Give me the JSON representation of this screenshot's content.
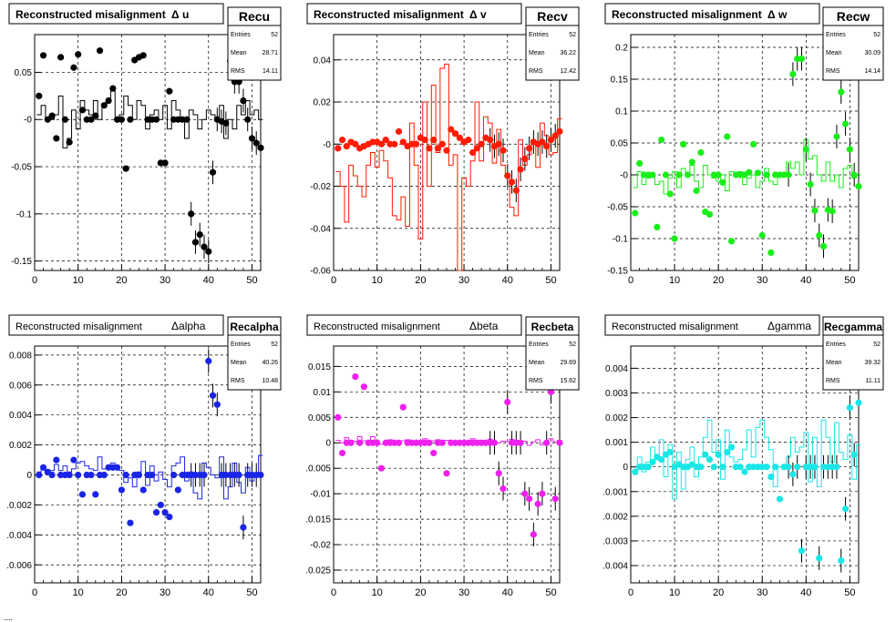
{
  "chart_data": [
    {
      "type": "scatter",
      "title": "Reconstructed misalignment",
      "quantity": "Δ u",
      "stats_name": "Recu",
      "stats": [
        [
          "Entries",
          "52"
        ],
        [
          "Mean",
          "28.71"
        ],
        [
          "RMS",
          "14.11"
        ]
      ],
      "color": "#000000",
      "xlim": [
        0,
        52
      ],
      "ylim": [
        -0.16,
        0.09
      ],
      "xticks": [
        0,
        10,
        20,
        30,
        40,
        50
      ],
      "yticks": [
        -0.15,
        -0.1,
        -0.05,
        0,
        0.05
      ],
      "ytick_labels": [
        "-0.15",
        "-0.1",
        "-0.05",
        "-0",
        "0.05"
      ],
      "x": [
        1,
        2,
        3,
        4,
        5,
        6,
        7,
        8,
        9,
        10,
        11,
        12,
        13,
        14,
        15,
        16,
        17,
        18,
        19,
        20,
        21,
        22,
        23,
        24,
        25,
        26,
        27,
        28,
        29,
        30,
        31,
        32,
        33,
        34,
        35,
        36,
        37,
        38,
        39,
        40,
        41,
        42,
        43,
        44,
        45,
        46,
        47,
        48,
        49,
        50,
        51,
        52
      ],
      "values": [
        0.025,
        0.068,
        0.0,
        0.004,
        -0.02,
        0.066,
        0.0,
        -0.024,
        0.055,
        0.069,
        0.01,
        0.0,
        0.0,
        0.004,
        0.073,
        0.015,
        0.02,
        0.033,
        0.0,
        0.0,
        -0.052,
        0.0,
        0.063,
        0.066,
        0.068,
        0.0,
        0.0,
        0.0,
        -0.046,
        -0.046,
        0.03,
        0.0,
        0.0,
        0.0,
        0.0,
        -0.1,
        -0.13,
        -0.122,
        -0.135,
        -0.14,
        -0.056,
        0.0,
        -0.002,
        -0.004,
        0.062,
        0.04,
        0.04,
        0.02,
        0.0,
        -0.02,
        -0.025,
        -0.03
      ],
      "hist": [
        0.005,
        0.015,
        0.0,
        0.0,
        0.005,
        0.025,
        -0.03,
        -0.02,
        0.01,
        -0.01,
        0.02,
        0.01,
        0.005,
        0.02,
        0.0,
        0.015,
        0.02,
        0.03,
        0.0,
        0.005,
        0.025,
        0.015,
        0.0,
        0.02,
        0.015,
        -0.01,
        0.005,
        0.01,
        0.0,
        0.015,
        -0.01,
        0.02,
        0.01,
        0.0,
        -0.02,
        0.01,
        0.005,
        -0.01,
        0.0,
        0.01,
        0.005,
        0.0,
        0.015,
        -0.02,
        0.0,
        -0.01,
        0.015,
        0.005,
        0.02,
        0.005,
        0.01,
        0.0
      ]
    },
    {
      "type": "scatter",
      "title": "Reconstructed misalignment",
      "quantity": "Δ v",
      "stats_name": "Recv",
      "stats": [
        [
          "Entries",
          "52"
        ],
        [
          "Mean",
          "36.22"
        ],
        [
          "RMS",
          "12.42"
        ]
      ],
      "color": "#ff1a00",
      "xlim": [
        0,
        52
      ],
      "ylim": [
        -0.06,
        0.052
      ],
      "xticks": [
        0,
        10,
        20,
        30,
        40,
        50
      ],
      "yticks": [
        -0.06,
        -0.04,
        -0.02,
        0,
        0.02,
        0.04
      ],
      "ytick_labels": [
        "-0.06",
        "-0.04",
        "-0.02",
        "-0",
        "0.02",
        "0.04"
      ],
      "x": [
        1,
        2,
        3,
        4,
        5,
        6,
        7,
        8,
        9,
        10,
        11,
        12,
        13,
        14,
        15,
        16,
        17,
        18,
        19,
        20,
        21,
        22,
        23,
        24,
        25,
        26,
        27,
        28,
        29,
        30,
        31,
        32,
        33,
        34,
        35,
        36,
        37,
        38,
        39,
        40,
        41,
        42,
        43,
        44,
        45,
        46,
        47,
        48,
        49,
        50,
        51,
        52
      ],
      "values": [
        -0.002,
        0.002,
        -0.001,
        0.001,
        0.0,
        -0.002,
        -0.001,
        0.0,
        0.001,
        0.001,
        0.0,
        0.002,
        0.0,
        0.0,
        0.006,
        0.001,
        -0.001,
        0.0,
        0.0,
        0.003,
        0.002,
        -0.002,
        0.002,
        -0.002,
        0.0,
        -0.003,
        0.007,
        0.005,
        0.003,
        0.001,
        0.002,
        -0.004,
        -0.002,
        0.0,
        0.003,
        0.002,
        -0.001,
        0.0,
        -0.003,
        -0.015,
        -0.018,
        -0.022,
        -0.012,
        -0.007,
        -0.002,
        0.001,
        0.0,
        0.001,
        -0.001,
        0.002,
        0.004,
        0.006
      ],
      "hist": [
        -0.013,
        -0.02,
        -0.037,
        -0.01,
        -0.015,
        -0.02,
        -0.025,
        -0.01,
        -0.004,
        -0.011,
        -0.003,
        -0.008,
        -0.016,
        -0.034,
        -0.036,
        -0.025,
        -0.039,
        0.01,
        -0.01,
        -0.045,
        0.02,
        -0.02,
        0.028,
        -0.004,
        0.036,
        0.038,
        -0.01,
        -0.005,
        -0.06,
        -0.016,
        -0.02,
        -0.008,
        0.02,
        -0.008,
        0.013,
        0.01,
        -0.009,
        0.007,
        -0.01,
        -0.014,
        -0.03,
        -0.034,
        0.002,
        -0.01,
        -0.005,
        0.002,
        -0.011,
        0.01,
        0.004,
        -0.005,
        -0.004,
        0.012
      ]
    },
    {
      "type": "scatter",
      "title": "Reconstructed misalignment",
      "quantity": "Δ w",
      "stats_name": "Recw",
      "stats": [
        [
          "Entries",
          "52"
        ],
        [
          "Mean",
          "30.09"
        ],
        [
          "RMS",
          "14.14"
        ]
      ],
      "color": "#1aee1a",
      "xlim": [
        0,
        52
      ],
      "ylim": [
        -0.15,
        0.22
      ],
      "xticks": [
        0,
        10,
        20,
        30,
        40,
        50
      ],
      "yticks": [
        -0.15,
        -0.1,
        -0.05,
        0,
        0.05,
        0.1,
        0.15,
        0.2
      ],
      "ytick_labels": [
        "-0.15",
        "-0.1",
        "-0.05",
        "-0",
        "0.05",
        "0.1",
        "0.15",
        "0.2"
      ],
      "x": [
        1,
        2,
        3,
        4,
        5,
        6,
        7,
        8,
        9,
        10,
        11,
        12,
        13,
        14,
        15,
        16,
        17,
        18,
        19,
        20,
        21,
        22,
        23,
        24,
        25,
        26,
        27,
        28,
        29,
        30,
        31,
        32,
        33,
        34,
        35,
        36,
        37,
        38,
        39,
        40,
        41,
        42,
        43,
        44,
        45,
        46,
        47,
        48,
        49,
        50,
        51,
        52
      ],
      "values": [
        -0.06,
        0.018,
        0.0,
        0.0,
        0.0,
        -0.082,
        0.055,
        0.0,
        -0.03,
        -0.1,
        0.0,
        0.048,
        0.0,
        0.02,
        -0.025,
        0.035,
        -0.058,
        -0.062,
        0.0,
        0.0,
        -0.012,
        0.06,
        -0.104,
        0.0,
        0.0,
        0.0,
        0.004,
        0.048,
        0.003,
        -0.095,
        0.0,
        -0.122,
        0.0,
        0.0,
        0.0,
        0.0,
        0.158,
        0.182,
        0.182,
        0.04,
        -0.015,
        -0.056,
        -0.095,
        -0.112,
        -0.055,
        -0.057,
        0.06,
        0.13,
        0.08,
        0.04,
        0.0,
        -0.018
      ],
      "hist": [
        -0.02,
        0.005,
        -0.015,
        -0.005,
        0.0,
        -0.015,
        -0.01,
        -0.03,
        -0.005,
        0.005,
        -0.02,
        0.01,
        0.0,
        0.015,
        -0.01,
        -0.02,
        0.015,
        0.0,
        -0.005,
        -0.01,
        0.0,
        -0.025,
        0.005,
        0.0,
        0.005,
        -0.015,
        -0.005,
        0.0,
        -0.02,
        -0.01,
        0.01,
        -0.01,
        -0.015,
        0.0,
        0.0,
        0.02,
        0.01,
        0.02,
        0.0,
        0.055,
        0.025,
        0.03,
        0.0,
        -0.01,
        0.02,
        -0.01,
        0.0,
        -0.02,
        0.01,
        0.015,
        -0.005,
        0.0
      ]
    },
    {
      "type": "scatter",
      "title": "Reconstructed misalignment",
      "quantity": "Δalpha",
      "stats_name": "Recalpha",
      "stats": [
        [
          "Entries",
          "52"
        ],
        [
          "Mean",
          "40.26"
        ],
        [
          "RMS",
          "10.48"
        ]
      ],
      "color": "#1a24e6",
      "xlim": [
        0,
        52
      ],
      "ylim": [
        -0.0072,
        0.0086
      ],
      "xticks": [
        0,
        10,
        20,
        30,
        40,
        50
      ],
      "yticks": [
        -0.006,
        -0.004,
        -0.002,
        0,
        0.002,
        0.004,
        0.006,
        0.008
      ],
      "ytick_labels": [
        ".0.006",
        ".0.004",
        ".0.002",
        "0",
        "0.002",
        "0.004",
        "0.006",
        "0.008"
      ],
      "x": [
        1,
        2,
        3,
        4,
        5,
        6,
        7,
        8,
        9,
        10,
        11,
        12,
        13,
        14,
        15,
        16,
        17,
        18,
        19,
        20,
        21,
        22,
        23,
        24,
        25,
        26,
        27,
        28,
        29,
        30,
        31,
        32,
        33,
        34,
        35,
        36,
        37,
        38,
        39,
        40,
        41,
        42,
        43,
        44,
        45,
        46,
        47,
        48,
        49,
        50,
        51,
        52
      ],
      "values": [
        0.0,
        0.0005,
        0.0002,
        0.0,
        0.001,
        0.0,
        0.0,
        0.0,
        0.001,
        0.0,
        -0.0013,
        0.0,
        0.0,
        -0.0013,
        0.0,
        0.0,
        0.0005,
        0.0005,
        0.0005,
        -0.001,
        0.0,
        -0.0032,
        0.0,
        0.0,
        -0.001,
        0.0,
        0.0,
        -0.0025,
        -0.002,
        -0.0025,
        -0.0028,
        0.0,
        -0.001,
        0.0,
        0.0,
        0.0,
        0.0,
        0.0,
        0.0,
        0.0076,
        0.0053,
        0.0047,
        0.0,
        0.0,
        0.0,
        0.0,
        0.0,
        -0.0035,
        0.0,
        0.0,
        0.0,
        0.0
      ],
      "hist": [
        0.0002,
        0.0004,
        0.0001,
        0.0003,
        0.0007,
        0.0003,
        0.0006,
        0.0002,
        0.0004,
        0.0008,
        0.0009,
        0.0006,
        0.0004,
        0.0003,
        0.0012,
        0.0004,
        0.0006,
        0.0008,
        0.0005,
        0.0003,
        -0.0005,
        -0.0002,
        -0.0008,
        0.0002,
        0.0009,
        -0.0007,
        0.0006,
        -0.0004,
        0.0002,
        -0.0003,
        -0.0008,
        0.0006,
        0.0008,
        0.0012,
        -0.0004,
        0.0002,
        -0.0012,
        -0.0016,
        0.0008,
        0.0005,
        0.0,
        -0.0002,
        0.0012,
        -0.0016,
        -0.0008,
        0.0008,
        -0.0005,
        -0.0012,
        0.0005,
        -0.0004,
        0.0,
        0.0013
      ]
    },
    {
      "type": "scatter",
      "title": "Reconstructed misalignment",
      "quantity": "Δbeta",
      "stats_name": "Recbeta",
      "stats": [
        [
          "Entries",
          "52"
        ],
        [
          "Mean",
          "29.69"
        ],
        [
          "RMS",
          "15.62"
        ]
      ],
      "color": "#ee20ee",
      "xlim": [
        0,
        52
      ],
      "ylim": [
        -0.0275,
        0.019
      ],
      "xticks": [
        0,
        10,
        20,
        30,
        40,
        50
      ],
      "yticks": [
        -0.025,
        -0.02,
        -0.015,
        -0.01,
        -0.005,
        0,
        0.005,
        0.01,
        0.015
      ],
      "ytick_labels": [
        ".0.025",
        "-0.02",
        ".0.015",
        "-0.01",
        ".0.005",
        "0",
        "0.005",
        "0.01",
        "0.015"
      ],
      "x": [
        1,
        2,
        3,
        4,
        5,
        6,
        7,
        8,
        9,
        10,
        11,
        12,
        13,
        14,
        15,
        16,
        17,
        18,
        19,
        20,
        21,
        22,
        23,
        24,
        25,
        26,
        27,
        28,
        29,
        30,
        31,
        32,
        33,
        34,
        35,
        36,
        37,
        38,
        39,
        40,
        41,
        42,
        43,
        44,
        45,
        46,
        47,
        48,
        49,
        50,
        51,
        52
      ],
      "values": [
        0.005,
        -0.002,
        0.0,
        0.0,
        0.013,
        0.0,
        0.011,
        0.0,
        0.0,
        0.0,
        -0.005,
        0.0,
        0.0,
        0.0,
        0.0,
        0.007,
        0.0,
        0.0,
        0.0,
        0.0,
        0.0,
        0.0,
        -0.002,
        0.0,
        0.0,
        -0.006,
        0.0,
        0.0,
        0.0,
        0.0,
        0.0,
        0.0,
        0.0,
        0.0,
        0.0,
        0.0,
        0.0,
        -0.006,
        -0.009,
        0.008,
        0.0,
        0.0,
        0.0,
        -0.01,
        -0.011,
        -0.018,
        -0.012,
        -0.01,
        0.0,
        0.01,
        -0.011,
        0.0
      ],
      "hist": [
        0.0005,
        0.0,
        0.001,
        0.0005,
        0.0003,
        0.0012,
        0.0004,
        0.0,
        0.0012,
        0.0004,
        -0.0003,
        0.0002,
        0.0006,
        0.0002,
        0.0,
        0.0004,
        0.0006,
        0.0002,
        0.0,
        0.0003,
        0.0008,
        0.0,
        0.0004,
        0.0006,
        0.0002,
        0.0005,
        0.0,
        0.0002,
        0.0004,
        0.0,
        0.0004,
        0.0008,
        0.0002,
        0.0005,
        0.0003,
        0.0007,
        0.0002,
        0.0,
        0.0003,
        0.0002,
        0.0007,
        0.0005,
        0.0,
        0.0003,
        -0.0005,
        0.0002,
        0.0006,
        -0.0004,
        0.0004,
        0.0008,
        0.0002,
        0.0005
      ]
    },
    {
      "type": "scatter",
      "title": "Reconstructed misalignment",
      "quantity": "Δgamma",
      "stats_name": "Recgamma",
      "stats": [
        [
          "Entries",
          "52"
        ],
        [
          "Mean",
          "39.32"
        ],
        [
          "RMS",
          "11.11"
        ]
      ],
      "color": "#1ae6e6",
      "xlim": [
        0,
        52
      ],
      "ylim": [
        -0.0047,
        0.0049
      ],
      "xticks": [
        0,
        10,
        20,
        30,
        40,
        50
      ],
      "yticks": [
        -0.004,
        -0.003,
        -0.002,
        -0.001,
        0,
        0.001,
        0.002,
        0.003,
        0.004
      ],
      "ytick_labels": [
        ".0.004",
        ".0.003",
        ".0.002",
        ".0.001",
        "0",
        "0.001",
        "0.002",
        "0.003",
        "0.004"
      ],
      "x": [
        1,
        2,
        3,
        4,
        5,
        6,
        7,
        8,
        9,
        10,
        11,
        12,
        13,
        14,
        15,
        16,
        17,
        18,
        19,
        20,
        21,
        22,
        23,
        24,
        25,
        26,
        27,
        28,
        29,
        30,
        31,
        32,
        33,
        34,
        35,
        36,
        37,
        38,
        39,
        40,
        41,
        42,
        43,
        44,
        45,
        46,
        47,
        48,
        49,
        50,
        51,
        52
      ],
      "values": [
        -0.0002,
        0.0,
        0.0,
        0.0,
        0.0002,
        0.0004,
        0.0003,
        0.0005,
        0.0006,
        0.0,
        0.0001,
        0.0,
        0.0,
        0.0001,
        0.0,
        0.0,
        0.0005,
        0.0003,
        0.0,
        0.0005,
        0.0,
        0.0006,
        0.0008,
        0.0,
        0.0,
        -0.0002,
        0.0,
        0.0,
        0.0,
        0.0,
        0.0,
        -0.0004,
        0.0,
        -0.0013,
        0.0,
        0.0,
        -0.0003,
        0.0,
        -0.0034,
        0.0,
        0.0,
        0.0,
        -0.0037,
        0.0,
        0.0,
        0.0,
        0.0,
        -0.0038,
        -0.0017,
        0.0024,
        0.0005,
        0.0026
      ],
      "hist": [
        -0.0003,
        0.0004,
        -0.0002,
        0.0002,
        0.0008,
        0.0004,
        0.0011,
        -0.0004,
        0.0009,
        -0.0013,
        0.0006,
        -0.0009,
        0.0003,
        0.0008,
        -0.0004,
        0.0004,
        0.0012,
        0.0019,
        0.0006,
        0.0011,
        -0.0005,
        0.0015,
        0.0004,
        0.0002,
        0.0003,
        0.0007,
        0.0015,
        0.0004,
        0.0016,
        0.0019,
        0.0012,
        0.0007,
        -0.0008,
        0.0,
        0.0,
        0.0004,
        0.0012,
        0.0006,
        0.0008,
        0.0014,
        -0.0006,
        0.0012,
        -0.0008,
        0.0019,
        0.0012,
        0.0002,
        0.0018,
        0.0006,
        0.0003,
        0.0013,
        -0.0005,
        0.0009
      ]
    }
  ],
  "footer_text": "...."
}
